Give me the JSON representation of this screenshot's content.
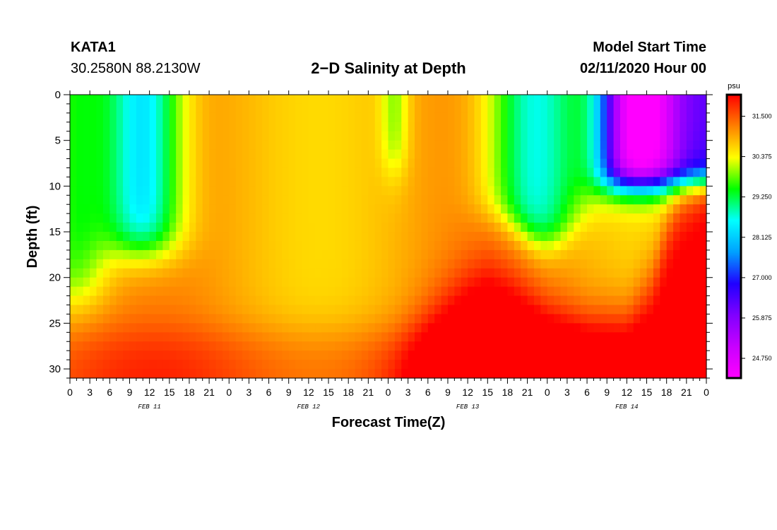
{
  "header": {
    "station": "KATA1",
    "coords": "30.2580N 88.2130W",
    "title": "2−D Salinity at Depth",
    "model_label": "Model Start Time",
    "model_time": "02/11/2020 Hour 00"
  },
  "chart_data": {
    "type": "heatmap",
    "title": "2−D Salinity at Depth",
    "xlabel": "Forecast Time(Z)",
    "ylabel": "Depth (ft)",
    "y_ticks": [
      0,
      5,
      10,
      15,
      20,
      25,
      30
    ],
    "ylim": [
      0,
      31
    ],
    "y_inverted": true,
    "x_ticks": [
      "0",
      "3",
      "6",
      "9",
      "12",
      "15",
      "18",
      "21",
      "0",
      "3",
      "6",
      "9",
      "12",
      "15",
      "18",
      "21",
      "0",
      "3",
      "6",
      "9",
      "12",
      "15",
      "18",
      "21",
      "0",
      "3",
      "6",
      "9",
      "12",
      "15",
      "18",
      "21",
      "0"
    ],
    "x_hours_range": [
      0,
      96
    ],
    "date_labels": [
      {
        "text": "FEB 11",
        "hour": 12
      },
      {
        "text": "FEB 12",
        "hour": 36
      },
      {
        "text": "FEB 13",
        "hour": 60
      },
      {
        "text": "FEB 14",
        "hour": 84
      }
    ],
    "colorbar": {
      "unit": "psu",
      "ticks": [
        "31.500",
        "30.375",
        "29.250",
        "28.125",
        "27.000",
        "25.875",
        "24.750"
      ],
      "range": [
        24.2,
        32.1
      ],
      "colors": [
        "#ff00ff",
        "#c800ff",
        "#8000ff",
        "#2000ff",
        "#00a0ff",
        "#00ffff",
        "#00ff00",
        "#ffff00",
        "#ff8000",
        "#ff0000"
      ]
    },
    "grid": false,
    "legend": "colorbar-right"
  }
}
